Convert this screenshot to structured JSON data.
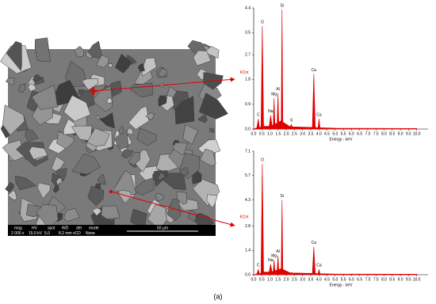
{
  "sem_image": {
    "header": [
      "mag",
      "HV",
      "spot",
      "WD",
      "det",
      "mode"
    ],
    "values": [
      "2 000 x",
      "15.0 kV",
      "5.0",
      "8.2 mm",
      "vCD",
      "None"
    ],
    "scale": "50 µm"
  },
  "caption": "(a)",
  "chart_data": [
    {
      "type": "area",
      "ylabel": "KCnt",
      "xlabel": "Energy - keV",
      "color": "#e00000",
      "x": [
        0.0,
        0.2,
        0.28,
        0.36,
        0.45,
        0.53,
        0.61,
        0.95,
        1.04,
        1.13,
        1.2,
        1.25,
        1.3,
        1.44,
        1.49,
        1.54,
        1.69,
        1.74,
        1.79,
        2.25,
        2.31,
        2.37,
        3.6,
        3.69,
        3.78,
        3.95,
        4.01,
        4.07,
        5.0,
        10.0
      ],
      "values": [
        0,
        0.05,
        0.37,
        0.05,
        0.08,
        3.74,
        0.1,
        0.1,
        0.5,
        0.12,
        0.15,
        1.12,
        0.2,
        0.2,
        1.3,
        0.25,
        0.3,
        4.34,
        0.25,
        0.08,
        0.17,
        0.08,
        0.06,
        2.0,
        0.06,
        0.05,
        0.37,
        0.05,
        0.03,
        0.02
      ],
      "annotations": [
        {
          "text": "C",
          "x": 0.28
        },
        {
          "text": "O",
          "x": 0.53
        },
        {
          "text": "Na",
          "x": 1.04
        },
        {
          "text": "Mg",
          "x": 1.25
        },
        {
          "text": "Al",
          "x": 1.49
        },
        {
          "text": "Si",
          "x": 1.74
        },
        {
          "text": "S",
          "x": 2.31
        },
        {
          "text": "Ca",
          "x": 3.69
        },
        {
          "text": "Ca",
          "x": 4.01
        }
      ],
      "xlim": [
        0,
        10.7
      ],
      "ylim": [
        0,
        4.4
      ],
      "yticks": [
        {
          "value": 0,
          "label": "0.0"
        },
        0.9,
        1.8,
        2.7,
        3.5,
        4.4
      ],
      "xticks": [
        {
          "value": 0,
          "label": "0.0"
        },
        0.5,
        {
          "value": 1,
          "label": "1.0"
        },
        1.5,
        {
          "value": 2,
          "label": "2.0"
        },
        2.5,
        {
          "value": 3,
          "label": "3.0"
        },
        3.5,
        {
          "value": 4,
          "label": "4.0"
        },
        4.5,
        {
          "value": 5,
          "label": "5.0"
        },
        5.5,
        {
          "value": 6,
          "label": "6.0"
        },
        6.5,
        {
          "value": 7,
          "label": "7.0"
        },
        7.5,
        {
          "value": 8,
          "label": "8.0"
        },
        8.5,
        {
          "value": 9,
          "label": "9.0"
        },
        9.5,
        {
          "value": 10,
          "label": "10.0"
        }
      ]
    },
    {
      "type": "area",
      "ylabel": "KCnt",
      "xlabel": "Energy - keV",
      "color": "#e00000",
      "x": [
        0.0,
        0.2,
        0.28,
        0.36,
        0.45,
        0.53,
        0.61,
        0.95,
        1.04,
        1.13,
        1.2,
        1.25,
        1.3,
        1.44,
        1.49,
        1.54,
        1.69,
        1.74,
        1.79,
        2.25,
        2.31,
        2.37,
        3.6,
        3.69,
        3.78,
        3.95,
        4.01,
        4.07,
        5.0,
        10.0
      ],
      "values": [
        0,
        0.05,
        0.3,
        0.05,
        0.1,
        6.37,
        0.15,
        0.15,
        0.6,
        0.15,
        0.2,
        0.85,
        0.25,
        0.25,
        1.1,
        0.3,
        0.35,
        4.3,
        0.3,
        0.1,
        0.12,
        0.1,
        0.08,
        1.6,
        0.08,
        0.06,
        0.3,
        0.06,
        0.04,
        0.03
      ],
      "annotations": [
        {
          "text": "C",
          "x": 0.28
        },
        {
          "text": "O",
          "x": 0.53
        },
        {
          "text": "Na",
          "x": 1.04
        },
        {
          "text": "Mg",
          "x": 1.25
        },
        {
          "text": "Al",
          "x": 1.49
        },
        {
          "text": "Si",
          "x": 1.74
        },
        {
          "text": "Ca",
          "x": 3.69
        },
        {
          "text": "Ca",
          "x": 4.01
        }
      ],
      "xlim": [
        0,
        10.7
      ],
      "ylim": [
        0,
        7.1
      ],
      "yticks": [
        {
          "value": 0,
          "label": "0.0"
        },
        1.4,
        2.8,
        4.3,
        5.7,
        7.1
      ],
      "xticks": [
        {
          "value": 0,
          "label": "0.0"
        },
        0.5,
        {
          "value": 1,
          "label": "1.0"
        },
        1.5,
        {
          "value": 2,
          "label": "2.0"
        },
        2.5,
        {
          "value": 3,
          "label": "3.0"
        },
        3.5,
        {
          "value": 4,
          "label": "4.0"
        },
        4.5,
        {
          "value": 5,
          "label": "5.0"
        },
        5.5,
        {
          "value": 6,
          "label": "6.0"
        },
        6.5,
        {
          "value": 7,
          "label": "7.0"
        },
        7.5,
        {
          "value": 8,
          "label": "8.0"
        },
        8.5,
        {
          "value": 9,
          "label": "9.0"
        },
        9.5,
        {
          "value": 10,
          "label": "10.0"
        }
      ]
    }
  ]
}
